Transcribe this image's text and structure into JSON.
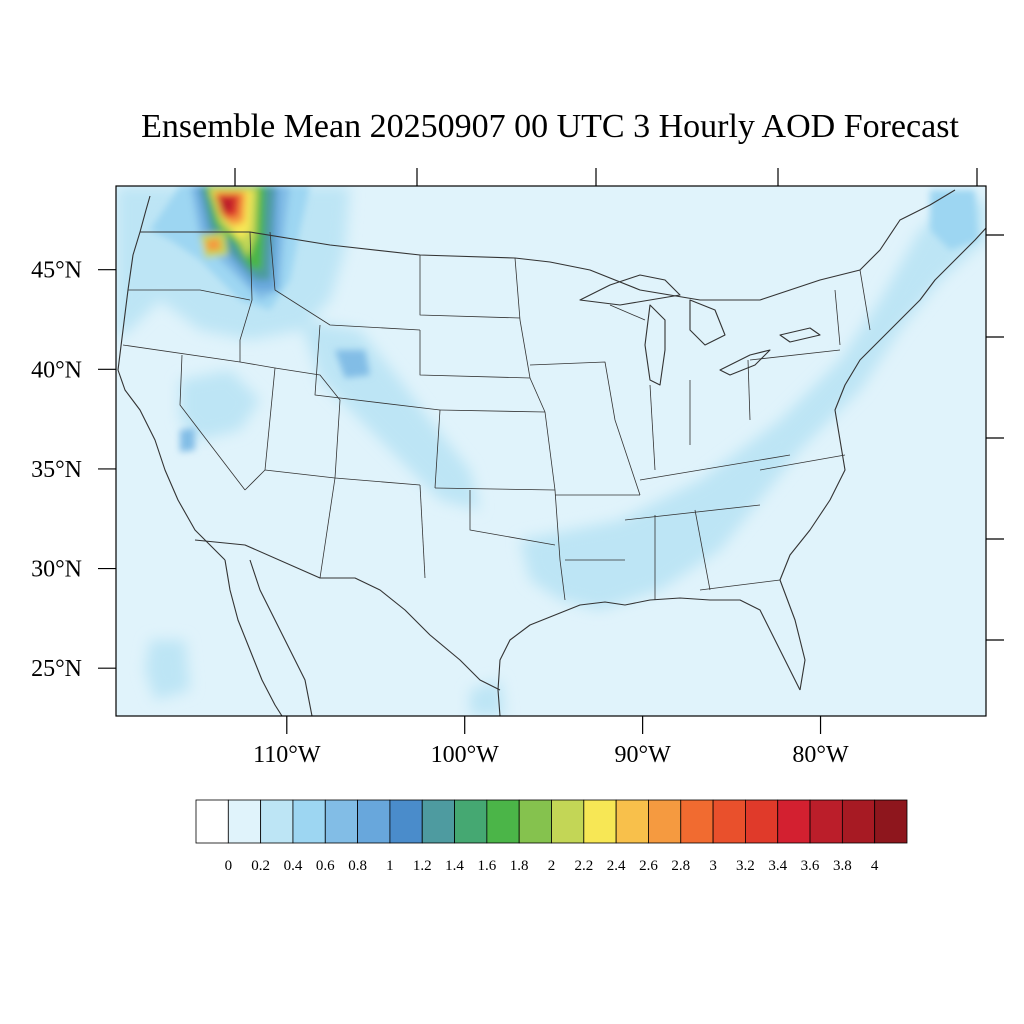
{
  "title": "Ensemble Mean 20250907 00 UTC 3 Hourly AOD Forecast",
  "map": {
    "lat_range": [
      22.6,
      49.2
    ],
    "lon_range": [
      -119.6,
      -70.7
    ],
    "lat_ticks": [
      {
        "value": 45,
        "label": "45°N"
      },
      {
        "value": 40,
        "label": "40°N"
      },
      {
        "value": 35,
        "label": "35°N"
      },
      {
        "value": 30,
        "label": "30°N"
      },
      {
        "value": 25,
        "label": "25°N"
      }
    ],
    "lon_ticks": [
      {
        "value": -110,
        "label": "110°W"
      },
      {
        "value": -100,
        "label": "100°W"
      },
      {
        "value": -90,
        "label": "90°W"
      },
      {
        "value": -80,
        "label": "80°W"
      }
    ],
    "background_color": "#e0f3fb",
    "boundary_color": "#333333"
  },
  "colorbar": {
    "colors": [
      "#ffffff",
      "#e0f3fb",
      "#bde5f5",
      "#9dd6f2",
      "#82bde6",
      "#68a7dc",
      "#4a8ccb",
      "#4e9ba0",
      "#45a872",
      "#4bb548",
      "#85c24e",
      "#c3d656",
      "#f7e755",
      "#f8c04b",
      "#f59a40",
      "#f16b30",
      "#e9502c",
      "#e03a2a",
      "#d32030",
      "#bb1e2a",
      "#a71a23",
      "#8e161d"
    ],
    "labels": [
      "0",
      "0.2",
      "0.4",
      "0.6",
      "0.8",
      "1",
      "1.2",
      "1.4",
      "1.6",
      "1.8",
      "2",
      "2.2",
      "2.4",
      "2.6",
      "2.8",
      "3",
      "3.2",
      "3.4",
      "3.6",
      "3.8",
      "4"
    ]
  }
}
